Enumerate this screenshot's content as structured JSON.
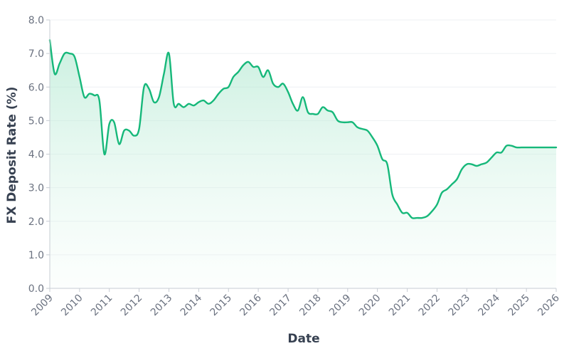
{
  "chart_data": {
    "type": "area",
    "title": "",
    "xlabel": "Date",
    "ylabel": "FX Deposit Rate (%)",
    "xlim": [
      "2009-01-01",
      "2026-01-01"
    ],
    "ylim": [
      0,
      8
    ],
    "grid": true,
    "legend": "none",
    "colors": {
      "line": "#16b87a",
      "fill_top": "#9fe3c6",
      "fill_bottom": "#f2fcf7",
      "grid": "#eef0f3",
      "axis": "#c7ccd3"
    },
    "x_ticks": [
      {
        "value": "2009-01-01",
        "label": "2009"
      },
      {
        "value": "2010-01-01",
        "label": "2010"
      },
      {
        "value": "2011-01-01",
        "label": "2011"
      },
      {
        "value": "2012-01-01",
        "label": "2012"
      },
      {
        "value": "2013-01-01",
        "label": "2013"
      },
      {
        "value": "2014-01-01",
        "label": "2014"
      },
      {
        "value": "2015-01-01",
        "label": "2015"
      },
      {
        "value": "2016-01-01",
        "label": "2016"
      },
      {
        "value": "2017-01-01",
        "label": "2017"
      },
      {
        "value": "2018-01-01",
        "label": "2018"
      },
      {
        "value": "2019-01-01",
        "label": "2019"
      },
      {
        "value": "2020-01-01",
        "label": "2020"
      },
      {
        "value": "2021-01-01",
        "label": "2021"
      },
      {
        "value": "2022-01-01",
        "label": "2022"
      },
      {
        "value": "2023-01-01",
        "label": "2023"
      },
      {
        "value": "2024-01-01",
        "label": "2024"
      },
      {
        "value": "2025-01-01",
        "label": "2025"
      },
      {
        "value": "2026-01-01",
        "label": "2026"
      }
    ],
    "y_ticks": [
      {
        "value": 0,
        "label": "0.0"
      },
      {
        "value": 1,
        "label": "1.0"
      },
      {
        "value": 2,
        "label": "2.0"
      },
      {
        "value": 3,
        "label": "3.0"
      },
      {
        "value": 4,
        "label": "4.0"
      },
      {
        "value": 5,
        "label": "5.0"
      },
      {
        "value": 6,
        "label": "6.0"
      },
      {
        "value": 7,
        "label": "7.0"
      },
      {
        "value": 8,
        "label": "8.0"
      }
    ],
    "x": [
      "2009-01-01",
      "2009-03-01",
      "2009-05-01",
      "2009-07-01",
      "2009-09-01",
      "2009-11-01",
      "2010-01-01",
      "2010-03-01",
      "2010-05-01",
      "2010-07-01",
      "2010-09-01",
      "2010-11-01",
      "2011-01-01",
      "2011-03-01",
      "2011-05-01",
      "2011-07-01",
      "2011-09-01",
      "2011-11-01",
      "2012-01-01",
      "2012-03-01",
      "2012-05-01",
      "2012-07-01",
      "2012-09-01",
      "2012-11-01",
      "2013-01-01",
      "2013-03-01",
      "2013-05-01",
      "2013-07-01",
      "2013-09-01",
      "2013-11-01",
      "2014-01-01",
      "2014-03-01",
      "2014-05-01",
      "2014-07-01",
      "2014-09-01",
      "2014-11-01",
      "2015-01-01",
      "2015-03-01",
      "2015-05-01",
      "2015-07-01",
      "2015-09-01",
      "2015-11-01",
      "2016-01-01",
      "2016-03-01",
      "2016-05-01",
      "2016-07-01",
      "2016-09-01",
      "2016-11-01",
      "2017-01-01",
      "2017-03-01",
      "2017-05-01",
      "2017-07-01",
      "2017-09-01",
      "2017-11-01",
      "2018-01-01",
      "2018-03-01",
      "2018-05-01",
      "2018-07-01",
      "2018-09-01",
      "2018-11-01",
      "2019-01-01",
      "2019-03-01",
      "2019-05-01",
      "2019-07-01",
      "2019-09-01",
      "2019-11-01",
      "2020-01-01",
      "2020-03-01",
      "2020-05-01",
      "2020-07-01",
      "2020-09-01",
      "2020-11-01",
      "2021-01-01",
      "2021-03-01",
      "2021-05-01",
      "2021-07-01",
      "2021-09-01",
      "2021-11-01",
      "2022-01-01",
      "2022-03-01",
      "2022-05-01",
      "2022-07-01",
      "2022-09-01",
      "2022-11-01",
      "2023-01-01",
      "2023-03-01",
      "2023-05-01",
      "2023-07-01",
      "2023-09-01",
      "2023-11-01",
      "2024-01-01",
      "2024-03-01",
      "2024-05-01",
      "2024-07-01",
      "2024-09-01",
      "2024-11-01",
      "2025-01-01",
      "2025-03-01",
      "2025-05-01",
      "2025-07-01",
      "2025-09-01",
      "2025-11-01",
      "2026-01-01"
    ],
    "series": [
      {
        "values": [
          7.4,
          6.4,
          6.7,
          7.0,
          7.0,
          6.9,
          6.3,
          5.7,
          5.8,
          5.75,
          5.6,
          4.0,
          4.9,
          4.95,
          4.3,
          4.7,
          4.7,
          4.55,
          4.75,
          6.0,
          5.95,
          5.55,
          5.7,
          6.4,
          7.0,
          5.5,
          5.5,
          5.4,
          5.5,
          5.45,
          5.55,
          5.6,
          5.5,
          5.6,
          5.8,
          5.95,
          6.0,
          6.3,
          6.45,
          6.65,
          6.75,
          6.6,
          6.6,
          6.3,
          6.5,
          6.1,
          6.0,
          6.1,
          5.85,
          5.5,
          5.3,
          5.7,
          5.25,
          5.2,
          5.2,
          5.4,
          5.3,
          5.25,
          5.0,
          4.95,
          4.95,
          4.95,
          4.8,
          4.75,
          4.7,
          4.5,
          4.25,
          3.85,
          3.7,
          2.8,
          2.5,
          2.25,
          2.25,
          2.1,
          2.1,
          2.1,
          2.15,
          2.3,
          2.5,
          2.85,
          2.95,
          3.1,
          3.25,
          3.55,
          3.7,
          3.7,
          3.65,
          3.7,
          3.75,
          3.9,
          4.05,
          4.05,
          4.25,
          4.25,
          4.2,
          4.2,
          4.2,
          4.2,
          4.2,
          4.2,
          4.2,
          4.2,
          4.2
        ]
      }
    ]
  }
}
